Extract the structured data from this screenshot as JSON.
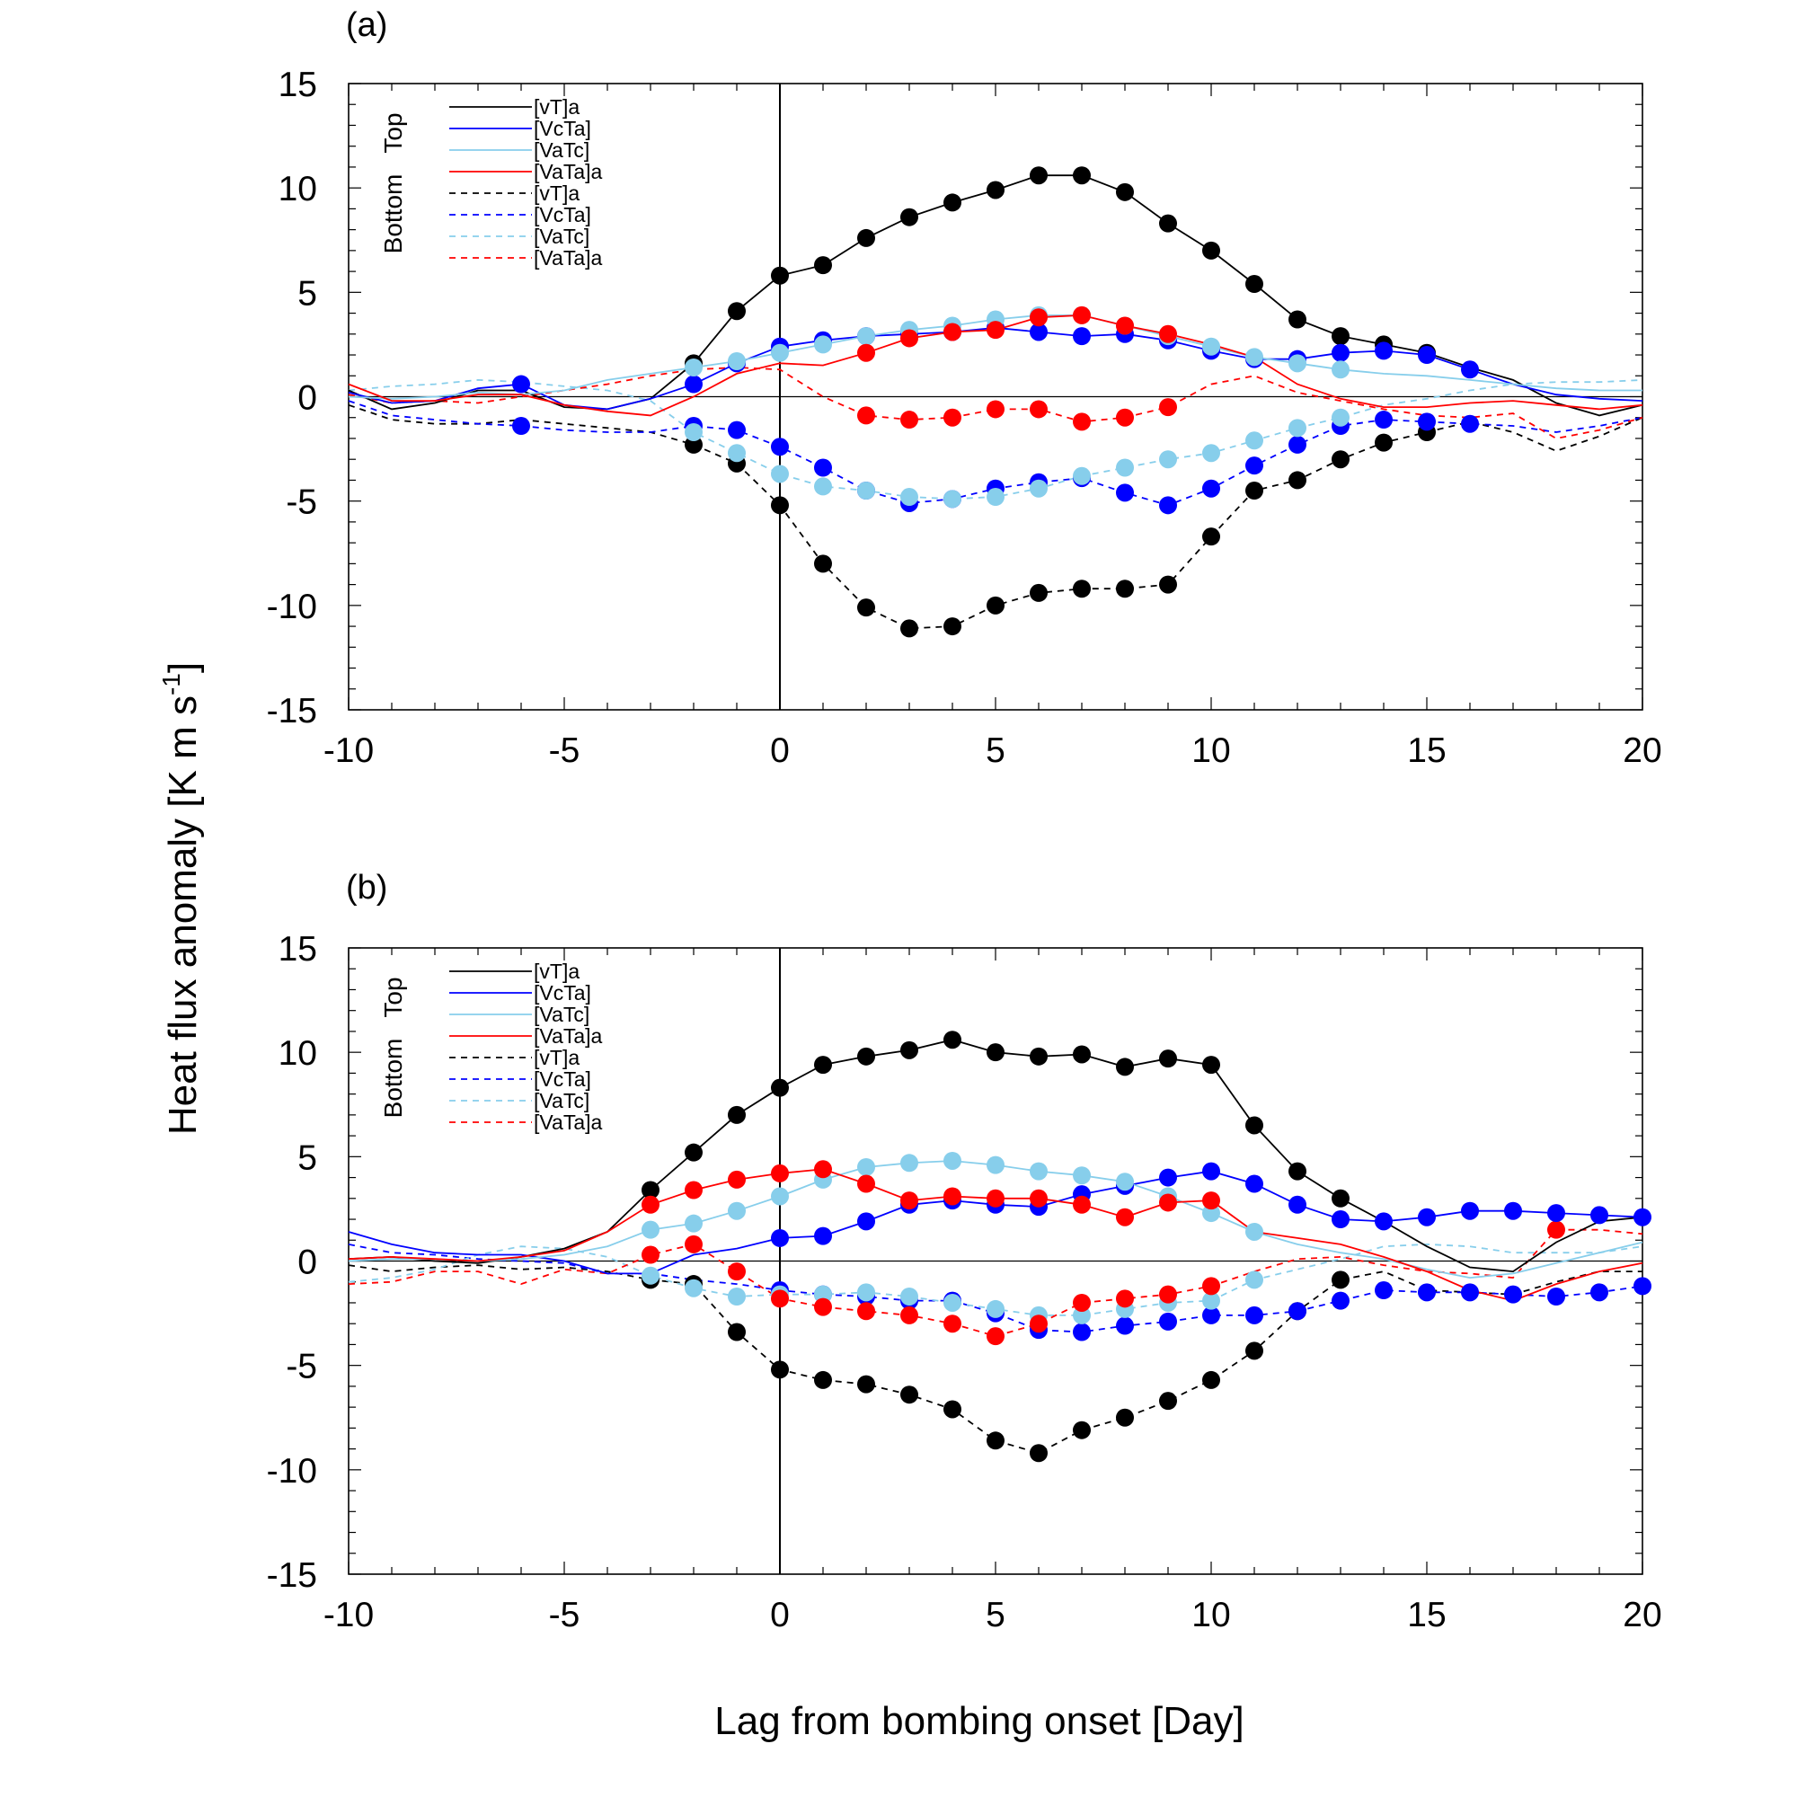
{
  "figure": {
    "ylabel": "Heat flux anomaly [K m s",
    "ylabel_sup": "-1",
    "ylabel_end": "]",
    "xlabel": "Lag from bombing onset [Day]"
  },
  "colors": {
    "black": "#000000",
    "blue": "#0000ff",
    "skyblue": "#87ceeb",
    "red": "#ff0000"
  },
  "chart_data": [
    {
      "type": "line",
      "panel_label": "(a)",
      "xlim": [
        -10,
        20
      ],
      "ylim": [
        -15,
        15
      ],
      "xticks": [
        -10,
        -5,
        0,
        5,
        10,
        15,
        20
      ],
      "yticks": [
        -15,
        -10,
        -5,
        0,
        5,
        10,
        15
      ],
      "grid": false,
      "reference_lines": {
        "x": 0,
        "y": 0
      },
      "legend": {
        "placement": "top-left",
        "group_labels": [
          "Top",
          "Bottom"
        ],
        "entries": [
          "[vT]a",
          "[VcTa]",
          "[VaTc]",
          "[VaTa]a",
          "[vT]a",
          "[VcTa]",
          "[VaTc]",
          "[VaTa]a"
        ]
      },
      "x": [
        -10,
        -9,
        -8,
        -7,
        -6,
        -5,
        -4,
        -3,
        -2,
        -1,
        0,
        1,
        2,
        3,
        4,
        5,
        6,
        7,
        8,
        9,
        10,
        11,
        12,
        13,
        14,
        15,
        16,
        17,
        18,
        19,
        20
      ],
      "series": [
        {
          "name": "[vT]a",
          "level": "Top",
          "color": "black",
          "dashed": false,
          "values": [
            0.3,
            -0.6,
            -0.3,
            0.3,
            0.3,
            -0.5,
            -0.6,
            -0.1,
            1.6,
            4.1,
            5.8,
            6.3,
            7.6,
            8.6,
            9.3,
            9.9,
            10.6,
            10.6,
            9.8,
            8.3,
            7.0,
            5.4,
            3.7,
            2.9,
            2.5,
            2.1,
            1.4,
            0.8,
            -0.3,
            -0.9,
            -0.4
          ],
          "markers": [
            -2,
            -1,
            0,
            1,
            2,
            3,
            4,
            5,
            6,
            7,
            8,
            9,
            10,
            11,
            12,
            13,
            14,
            15
          ]
        },
        {
          "name": "[VcTa]",
          "level": "Top",
          "color": "blue",
          "dashed": false,
          "values": [
            0.2,
            -0.3,
            -0.2,
            0.4,
            0.6,
            -0.4,
            -0.6,
            -0.1,
            0.6,
            1.6,
            2.4,
            2.7,
            2.9,
            3.0,
            3.1,
            3.3,
            3.1,
            2.9,
            3.0,
            2.7,
            2.2,
            1.8,
            1.8,
            2.1,
            2.2,
            2.0,
            1.3,
            0.6,
            0.1,
            -0.1,
            -0.2
          ],
          "markers": [
            -6,
            -2,
            -1,
            0,
            1,
            2,
            3,
            4,
            5,
            6,
            7,
            8,
            9,
            10,
            11,
            12,
            13,
            14,
            15,
            16
          ]
        },
        {
          "name": "[VaTc]",
          "level": "Top",
          "color": "skyblue",
          "dashed": false,
          "values": [
            0.0,
            -0.1,
            0.0,
            0.2,
            0.1,
            0.3,
            0.8,
            1.1,
            1.4,
            1.7,
            2.1,
            2.5,
            2.9,
            3.2,
            3.4,
            3.7,
            3.9,
            3.9,
            3.4,
            2.9,
            2.4,
            1.9,
            1.6,
            1.3,
            1.1,
            1.0,
            0.8,
            0.6,
            0.4,
            0.3,
            0.3
          ],
          "markers": [
            -2,
            -1,
            0,
            1,
            2,
            3,
            4,
            5,
            6,
            7,
            8,
            9,
            10,
            11,
            12,
            13
          ]
        },
        {
          "name": "[VaTa]a",
          "level": "Top",
          "color": "red",
          "dashed": false,
          "values": [
            0.6,
            -0.2,
            -0.2,
            0.1,
            0.1,
            -0.4,
            -0.7,
            -0.9,
            0.0,
            1.1,
            1.6,
            1.5,
            2.1,
            2.8,
            3.1,
            3.2,
            3.8,
            3.9,
            3.4,
            3.0,
            2.5,
            1.9,
            0.6,
            -0.1,
            -0.5,
            -0.5,
            -0.3,
            -0.2,
            -0.4,
            -0.6,
            -0.4
          ],
          "markers": [
            2,
            3,
            4,
            5,
            6,
            7,
            8,
            9
          ]
        },
        {
          "name": "[vT]a",
          "level": "Bottom",
          "color": "black",
          "dashed": true,
          "values": [
            -0.4,
            -1.1,
            -1.3,
            -1.3,
            -1.1,
            -1.3,
            -1.5,
            -1.7,
            -2.3,
            -3.2,
            -5.2,
            -8.0,
            -10.1,
            -11.1,
            -11.0,
            -10.0,
            -9.4,
            -9.2,
            -9.2,
            -9.0,
            -6.7,
            -4.5,
            -4.0,
            -3.0,
            -2.2,
            -1.7,
            -1.2,
            -1.7,
            -2.6,
            -1.9,
            -1.0
          ],
          "markers": [
            -2,
            -1,
            0,
            1,
            2,
            3,
            4,
            5,
            6,
            7,
            8,
            9,
            10,
            11,
            12,
            13,
            14,
            15
          ]
        },
        {
          "name": "[VcTa]",
          "level": "Bottom",
          "color": "blue",
          "dashed": true,
          "values": [
            -0.2,
            -0.9,
            -1.1,
            -1.3,
            -1.4,
            -1.6,
            -1.7,
            -1.7,
            -1.4,
            -1.6,
            -2.4,
            -3.4,
            -4.5,
            -5.1,
            -4.9,
            -4.4,
            -4.1,
            -3.9,
            -4.6,
            -5.2,
            -4.4,
            -3.3,
            -2.3,
            -1.4,
            -1.1,
            -1.2,
            -1.3,
            -1.4,
            -1.7,
            -1.4,
            -1.0
          ],
          "markers": [
            -6,
            -2,
            -1,
            0,
            1,
            2,
            3,
            4,
            5,
            6,
            7,
            8,
            9,
            10,
            11,
            12,
            13,
            14,
            15,
            16
          ]
        },
        {
          "name": "[VaTc]",
          "level": "Bottom",
          "color": "skyblue",
          "dashed": true,
          "values": [
            0.3,
            0.5,
            0.6,
            0.8,
            0.7,
            0.5,
            0.3,
            -0.2,
            -1.7,
            -2.7,
            -3.7,
            -4.3,
            -4.5,
            -4.8,
            -4.9,
            -4.8,
            -4.4,
            -3.8,
            -3.4,
            -3.0,
            -2.7,
            -2.1,
            -1.5,
            -1.0,
            -0.4,
            -0.1,
            0.3,
            0.6,
            0.7,
            0.7,
            0.8
          ],
          "markers": [
            -2,
            -1,
            0,
            1,
            2,
            3,
            4,
            5,
            6,
            7,
            8,
            9,
            10,
            11,
            12,
            13
          ]
        },
        {
          "name": "[VaTa]a",
          "level": "Bottom",
          "color": "red",
          "dashed": true,
          "values": [
            0.1,
            -0.3,
            -0.2,
            -0.3,
            0.0,
            0.3,
            0.6,
            1.0,
            1.3,
            1.4,
            1.3,
            0.0,
            -0.9,
            -1.1,
            -1.0,
            -0.6,
            -0.6,
            -1.2,
            -1.0,
            -0.5,
            0.6,
            1.0,
            0.2,
            -0.2,
            -0.6,
            -0.9,
            -1.0,
            -0.8,
            -2.0,
            -1.6,
            -1.0
          ],
          "markers": [
            2,
            3,
            4,
            5,
            6,
            7,
            8,
            9
          ]
        }
      ]
    },
    {
      "type": "line",
      "panel_label": "(b)",
      "xlim": [
        -10,
        20
      ],
      "ylim": [
        -15,
        15
      ],
      "xticks": [
        -10,
        -5,
        0,
        5,
        10,
        15,
        20
      ],
      "yticks": [
        -15,
        -10,
        -5,
        0,
        5,
        10,
        15
      ],
      "grid": false,
      "reference_lines": {
        "x": 0,
        "y": 0
      },
      "legend": {
        "placement": "top-left",
        "group_labels": [
          "Top",
          "Bottom"
        ],
        "entries": [
          "[vT]a",
          "[VcTa]",
          "[VaTc]",
          "[VaTa]a",
          "[vT]a",
          "[VcTa]",
          "[VaTc]",
          "[VaTa]a"
        ]
      },
      "x": [
        -10,
        -9,
        -8,
        -7,
        -6,
        -5,
        -4,
        -3,
        -2,
        -1,
        0,
        1,
        2,
        3,
        4,
        5,
        6,
        7,
        8,
        9,
        10,
        11,
        12,
        13,
        14,
        15,
        16,
        17,
        18,
        19,
        20
      ],
      "series": [
        {
          "name": "[vT]a",
          "level": "Top",
          "color": "black",
          "dashed": false,
          "values": [
            0.1,
            0.2,
            0.0,
            -0.1,
            0.2,
            0.6,
            1.4,
            3.4,
            5.2,
            7.0,
            8.3,
            9.4,
            9.8,
            10.1,
            10.6,
            10.0,
            9.8,
            9.9,
            9.3,
            9.7,
            9.4,
            6.5,
            4.3,
            3.0,
            1.9,
            0.7,
            -0.3,
            -0.5,
            0.9,
            1.9,
            2.1
          ],
          "markers": [
            -3,
            -2,
            -1,
            0,
            1,
            2,
            3,
            4,
            5,
            6,
            7,
            8,
            9,
            10,
            11,
            12,
            13
          ]
        },
        {
          "name": "[VcTa]",
          "level": "Top",
          "color": "blue",
          "dashed": false,
          "values": [
            1.4,
            0.8,
            0.4,
            0.3,
            0.3,
            0.0,
            -0.6,
            -0.6,
            0.3,
            0.6,
            1.1,
            1.2,
            1.9,
            2.7,
            2.9,
            2.7,
            2.6,
            3.2,
            3.6,
            4.0,
            4.3,
            3.7,
            2.7,
            2.0,
            1.9,
            2.1,
            2.4,
            2.4,
            2.3,
            2.2,
            2.1
          ],
          "markers": [
            0,
            1,
            2,
            3,
            4,
            5,
            6,
            7,
            8,
            9,
            10,
            11,
            12,
            13,
            14,
            15,
            16,
            17,
            18,
            19,
            20
          ]
        },
        {
          "name": "[VaTc]",
          "level": "Top",
          "color": "skyblue",
          "dashed": false,
          "values": [
            0.0,
            0.1,
            0.1,
            0.0,
            0.1,
            0.3,
            0.7,
            1.5,
            1.8,
            2.4,
            3.1,
            3.9,
            4.5,
            4.7,
            4.8,
            4.6,
            4.3,
            4.1,
            3.8,
            3.1,
            2.3,
            1.4,
            0.8,
            0.4,
            0.1,
            -0.4,
            -0.8,
            -0.6,
            -0.1,
            0.4,
            0.9
          ],
          "markers": [
            -3,
            -2,
            -1,
            0,
            1,
            2,
            3,
            4,
            5,
            6,
            7,
            8,
            9,
            10,
            11
          ]
        },
        {
          "name": "[VaTa]a",
          "level": "Top",
          "color": "red",
          "dashed": false,
          "values": [
            0.1,
            0.2,
            0.1,
            0.0,
            0.2,
            0.5,
            1.4,
            2.7,
            3.4,
            3.9,
            4.2,
            4.4,
            3.7,
            2.9,
            3.1,
            3.0,
            3.0,
            2.7,
            2.1,
            2.8,
            2.9,
            1.4,
            1.1,
            0.8,
            0.2,
            -0.5,
            -1.4,
            -1.9,
            -1.1,
            -0.5,
            -0.1
          ],
          "markers": [
            -3,
            -2,
            -1,
            0,
            1,
            2,
            3,
            4,
            5,
            6,
            7,
            8,
            9,
            10
          ]
        },
        {
          "name": "[vT]a",
          "level": "Bottom",
          "color": "black",
          "dashed": true,
          "values": [
            -0.2,
            -0.5,
            -0.3,
            -0.2,
            -0.4,
            -0.3,
            -0.5,
            -0.9,
            -1.1,
            -3.4,
            -5.2,
            -5.7,
            -5.9,
            -6.4,
            -7.1,
            -8.6,
            -9.2,
            -8.1,
            -7.5,
            -6.7,
            -5.7,
            -4.3,
            -2.4,
            -0.9,
            -0.5,
            -1.4,
            -1.5,
            -1.6,
            -1.0,
            -0.5,
            -0.5
          ],
          "markers": [
            -3,
            -2,
            -1,
            0,
            1,
            2,
            3,
            4,
            5,
            6,
            7,
            8,
            9,
            10,
            11,
            12,
            13
          ]
        },
        {
          "name": "[VcTa]",
          "level": "Bottom",
          "color": "blue",
          "dashed": true,
          "values": [
            0.8,
            0.4,
            0.3,
            0.1,
            0.0,
            -0.1,
            -0.6,
            -0.6,
            -0.9,
            -1.1,
            -1.4,
            -1.6,
            -1.7,
            -1.9,
            -1.9,
            -2.5,
            -3.3,
            -3.4,
            -3.1,
            -2.9,
            -2.6,
            -2.6,
            -2.4,
            -1.9,
            -1.4,
            -1.5,
            -1.5,
            -1.6,
            -1.7,
            -1.5,
            -1.2
          ],
          "markers": [
            0,
            1,
            2,
            3,
            4,
            5,
            6,
            7,
            8,
            9,
            10,
            11,
            12,
            13,
            14,
            15,
            16,
            17,
            18,
            19,
            20
          ]
        },
        {
          "name": "[VaTc]",
          "level": "Bottom",
          "color": "skyblue",
          "dashed": true,
          "values": [
            -1.0,
            -0.8,
            -0.4,
            0.3,
            0.7,
            0.6,
            0.2,
            -0.7,
            -1.3,
            -1.7,
            -1.6,
            -1.6,
            -1.5,
            -1.7,
            -2.0,
            -2.3,
            -2.6,
            -2.6,
            -2.3,
            -2.0,
            -1.9,
            -0.9,
            -0.4,
            0.1,
            0.7,
            0.8,
            0.7,
            0.4,
            0.4,
            0.4,
            0.7
          ],
          "markers": [
            -3,
            -2,
            -1,
            0,
            1,
            2,
            3,
            4,
            5,
            6,
            7,
            8,
            9,
            10,
            11
          ]
        },
        {
          "name": "[VaTa]a",
          "level": "Bottom",
          "color": "red",
          "dashed": true,
          "values": [
            -1.1,
            -1.0,
            -0.5,
            -0.5,
            -1.1,
            -0.4,
            -0.6,
            0.3,
            0.8,
            -0.5,
            -1.8,
            -2.2,
            -2.4,
            -2.6,
            -3.0,
            -3.6,
            -3.0,
            -2.0,
            -1.8,
            -1.6,
            -1.2,
            -0.5,
            0.1,
            0.2,
            -0.2,
            -0.5,
            -0.6,
            -0.8,
            1.5,
            1.5,
            1.3
          ],
          "markers": [
            -3,
            -2,
            -1,
            0,
            1,
            2,
            3,
            4,
            5,
            6,
            7,
            8,
            9,
            10,
            18
          ]
        }
      ]
    }
  ]
}
